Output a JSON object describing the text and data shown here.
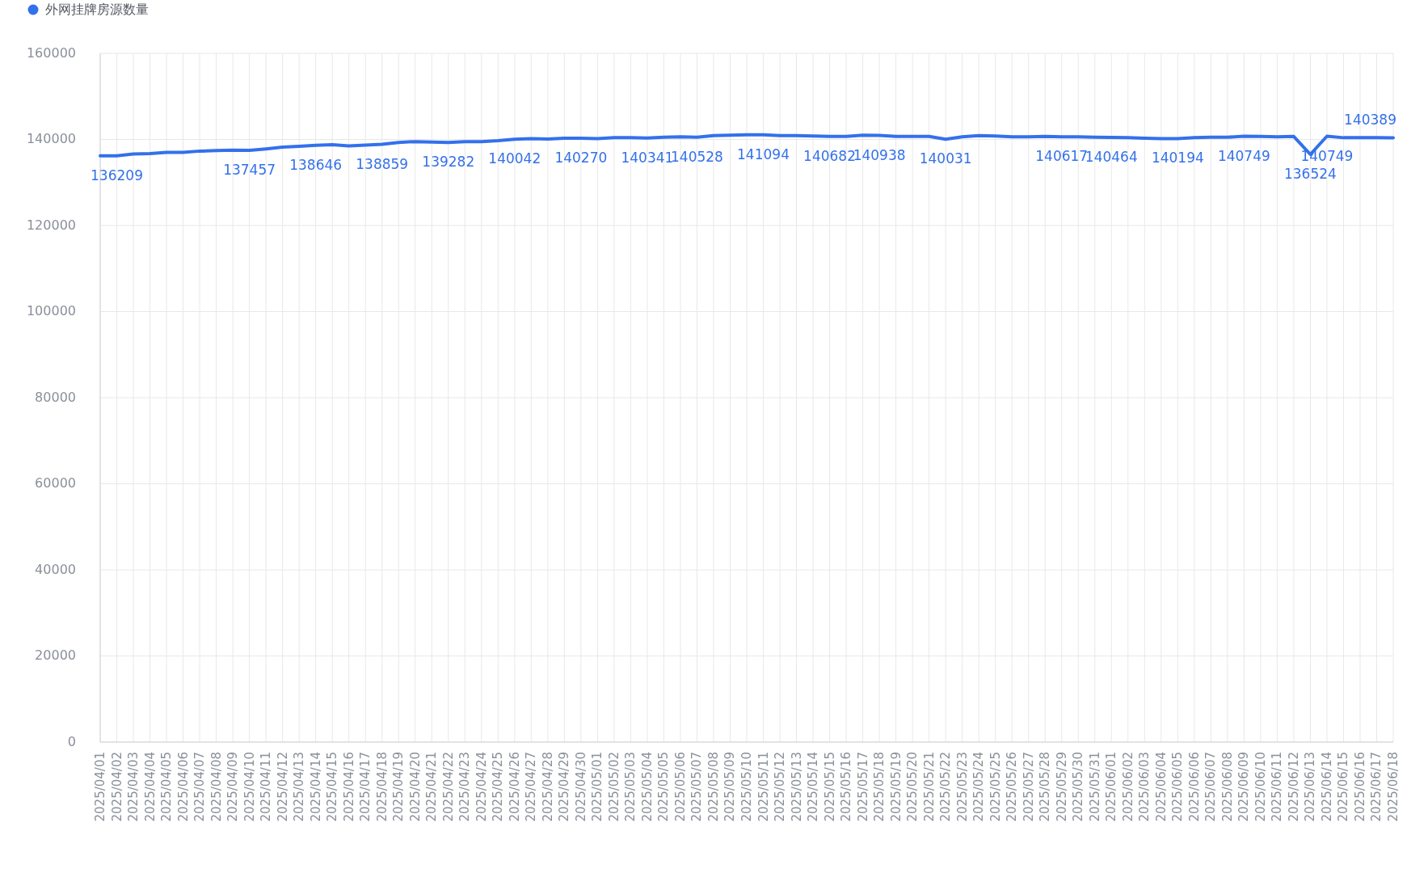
{
  "chart_data": {
    "type": "line",
    "categories": [
      "2025/04/01",
      "2025/04/02",
      "2025/04/03",
      "2025/04/04",
      "2025/04/05",
      "2025/04/06",
      "2025/04/07",
      "2025/04/08",
      "2025/04/09",
      "2025/04/10",
      "2025/04/11",
      "2025/04/12",
      "2025/04/13",
      "2025/04/14",
      "2025/04/15",
      "2025/04/16",
      "2025/04/17",
      "2025/04/18",
      "2025/04/19",
      "2025/04/20",
      "2025/04/21",
      "2025/04/22",
      "2025/04/23",
      "2025/04/24",
      "2025/04/25",
      "2025/04/26",
      "2025/04/27",
      "2025/04/28",
      "2025/04/29",
      "2025/04/30",
      "2025/05/01",
      "2025/05/02",
      "2025/05/03",
      "2025/05/04",
      "2025/05/05",
      "2025/05/06",
      "2025/05/07",
      "2025/05/08",
      "2025/05/09",
      "2025/05/10",
      "2025/05/11",
      "2025/05/12",
      "2025/05/13",
      "2025/05/14",
      "2025/05/15",
      "2025/05/16",
      "2025/05/17",
      "2025/05/18",
      "2025/05/19",
      "2025/05/20",
      "2025/05/21",
      "2025/05/22",
      "2025/05/23",
      "2025/05/24",
      "2025/05/25",
      "2025/05/26",
      "2025/05/27",
      "2025/05/28",
      "2025/05/29",
      "2025/05/30",
      "2025/05/31",
      "2025/06/01",
      "2025/06/02",
      "2025/06/03",
      "2025/06/04",
      "2025/06/05",
      "2025/06/06",
      "2025/06/07",
      "2025/06/08",
      "2025/06/09",
      "2025/06/10",
      "2025/06/11",
      "2025/06/12",
      "2025/06/13",
      "2025/06/14",
      "2025/06/15",
      "2025/06/16",
      "2025/06/17",
      "2025/06/18"
    ],
    "series": [
      {
        "name": "外网挂牌房源数量",
        "color": "#3370eb",
        "values": [
          136200,
          136209,
          136600,
          136700,
          137000,
          137000,
          137300,
          137400,
          137500,
          137457,
          137800,
          138200,
          138400,
          138646,
          138800,
          138500,
          138700,
          138859,
          139300,
          139500,
          139400,
          139282,
          139500,
          139500,
          139700,
          140042,
          140200,
          140100,
          140300,
          140270,
          140200,
          140400,
          140400,
          140341,
          140500,
          140600,
          140528,
          140900,
          141000,
          141100,
          141094,
          140900,
          140900,
          140800,
          140682,
          140700,
          141000,
          140938,
          140700,
          140700,
          140700,
          140031,
          140600,
          140900,
          140800,
          140600,
          140600,
          140700,
          140617,
          140600,
          140500,
          140464,
          140400,
          140300,
          140200,
          140194,
          140400,
          140500,
          140500,
          140749,
          140700,
          140600,
          140700,
          136524,
          140749,
          140400,
          140400,
          140400,
          140389
        ],
        "value_labels": [
          null,
          "136209",
          null,
          null,
          null,
          null,
          null,
          null,
          null,
          "137457",
          null,
          null,
          null,
          "138646",
          null,
          null,
          null,
          "138859",
          null,
          null,
          null,
          "139282",
          null,
          null,
          null,
          "140042",
          null,
          null,
          null,
          "140270",
          null,
          null,
          null,
          "140341",
          null,
          null,
          "140528",
          null,
          null,
          null,
          "141094",
          null,
          null,
          null,
          "140682",
          null,
          null,
          "140938",
          null,
          null,
          null,
          "140031",
          null,
          null,
          null,
          null,
          null,
          null,
          "140617",
          null,
          null,
          "140464",
          null,
          null,
          null,
          "140194",
          null,
          null,
          null,
          "140749",
          null,
          null,
          null,
          "136524",
          "140749",
          null,
          null,
          null,
          "140389"
        ]
      }
    ],
    "ylim": [
      0,
      160000
    ],
    "yticks": [
      0,
      20000,
      40000,
      60000,
      80000,
      100000,
      120000,
      140000,
      160000
    ],
    "grid": true,
    "legend": "top left",
    "line_style": "solid"
  }
}
